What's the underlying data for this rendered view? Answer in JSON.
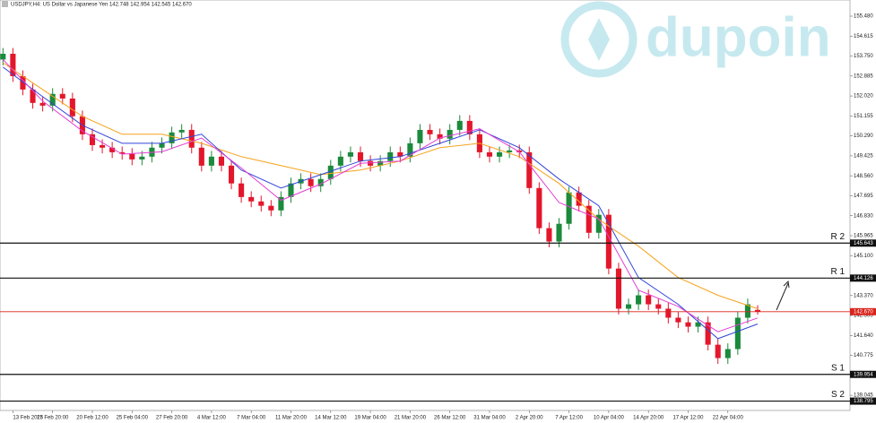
{
  "chart_data": {
    "type": "candlestick",
    "title": "USDJPY,H4:  US Dollar vs Japanese Yen  142.748 142.954 142.545 142.670",
    "watermark": "dupoin",
    "up_color": "#1b8a3c",
    "down_color": "#e3162b",
    "xlim": [
      -0.3,
      85.3
    ],
    "ylim": [
      138.39,
      156.18
    ],
    "xticks": [
      {
        "value": 1,
        "label": "13 Feb 2025"
      },
      {
        "value": 5,
        "label": "17 Feb 20:00"
      },
      {
        "value": 9,
        "label": "20 Feb 12:00"
      },
      {
        "value": 13,
        "label": "25 Feb 04:00"
      },
      {
        "value": 17,
        "label": "27 Feb 20:00"
      },
      {
        "value": 21,
        "label": "4 Mar 12:00"
      },
      {
        "value": 25,
        "label": "7 Mar 04:00"
      },
      {
        "value": 29,
        "label": "11 Mar 20:00"
      },
      {
        "value": 33,
        "label": "14 Mar 12:00"
      },
      {
        "value": 37,
        "label": "19 Mar 04:00"
      },
      {
        "value": 41,
        "label": "21 Mar 20:00"
      },
      {
        "value": 45,
        "label": "26 Mar 12:00"
      },
      {
        "value": 49,
        "label": "31 Mar 04:00"
      },
      {
        "value": 53,
        "label": "2 Apr 20:00"
      },
      {
        "value": 57,
        "label": "7 Apr 12:00"
      },
      {
        "value": 61,
        "label": "10 Apr 04:00"
      },
      {
        "value": 65,
        "label": "14 Apr 20:00"
      },
      {
        "value": 69,
        "label": "17 Apr 12:00"
      },
      {
        "value": 73,
        "label": "22 Apr 04:00"
      }
    ],
    "yticks": [
      {
        "value": 155.48,
        "label": "155.480"
      },
      154.615,
      {
        "value": 153.75,
        "label": "153.750"
      },
      152.885,
      {
        "value": 152.02,
        "label": "152.020"
      },
      151.155,
      {
        "value": 150.29,
        "label": "150.290"
      },
      149.425,
      {
        "value": 148.56,
        "label": "148.560"
      },
      147.695,
      {
        "value": 146.83,
        "label": "146.830"
      },
      145.965,
      {
        "value": 145.1,
        "label": "145.100"
      },
      {
        "value": 143.37,
        "label": "143.370"
      },
      142.505,
      {
        "value": 141.64,
        "label": "141.640"
      },
      140.775,
      139.045
    ],
    "open": [
      153.6,
      153.85,
      152.88,
      152.3,
      151.72,
      151.6,
      152.11,
      151.91,
      151.14,
      150.36,
      149.89,
      149.78,
      149.58,
      149.51,
      149.27,
      149.39,
      149.78,
      149.97,
      150.44,
      150.55,
      149.78,
      149.0,
      149.39,
      149.0,
      148.23,
      147.64,
      147.45,
      147.26,
      147.06,
      147.64,
      148.23,
      148.42,
      148.11,
      148.42,
      149.0,
      149.39,
      149.58,
      149.2,
      149.0,
      149.2,
      149.58,
      149.39,
      149.97,
      150.55,
      150.36,
      150.17,
      150.55,
      150.94,
      150.36,
      149.58,
      149.39,
      149.58,
      149.66,
      149.58,
      148.03,
      146.29,
      145.71,
      146.48,
      147.84,
      147.26,
      146.09,
      146.87,
      144.54,
      142.8,
      142.99,
      143.38,
      142.99,
      142.8,
      142.41,
      142.21,
      142.02,
      142.21,
      141.24,
      140.66,
      141.05,
      142.41,
      142.748
    ],
    "high": [
      154.1,
      154.1,
      153.13,
      152.55,
      151.97,
      152.36,
      152.36,
      152.16,
      151.39,
      150.61,
      150.14,
      150.03,
      149.83,
      149.76,
      149.64,
      150.03,
      150.22,
      150.69,
      150.8,
      150.8,
      150.03,
      149.64,
      149.64,
      149.25,
      148.48,
      147.89,
      147.7,
      147.51,
      147.89,
      148.48,
      148.67,
      148.67,
      148.67,
      149.25,
      149.64,
      149.83,
      149.83,
      149.45,
      149.45,
      149.83,
      149.83,
      150.22,
      150.8,
      150.8,
      150.61,
      150.8,
      151.19,
      151.19,
      150.61,
      149.83,
      149.83,
      149.91,
      149.91,
      149.83,
      148.28,
      146.54,
      146.73,
      148.09,
      148.09,
      147.51,
      147.12,
      147.12,
      144.79,
      143.24,
      143.63,
      143.63,
      143.24,
      143.05,
      142.66,
      142.46,
      142.46,
      142.46,
      141.49,
      141.3,
      142.66,
      143.24,
      142.954
    ],
    "low": [
      153.35,
      152.63,
      152.05,
      151.47,
      151.35,
      151.35,
      151.66,
      150.89,
      150.11,
      149.64,
      149.53,
      149.33,
      149.26,
      149.02,
      149.02,
      149.14,
      149.53,
      149.72,
      150.19,
      149.53,
      148.75,
      148.75,
      148.75,
      147.98,
      147.39,
      147.2,
      147.01,
      146.81,
      146.81,
      147.39,
      147.98,
      147.86,
      147.86,
      148.17,
      148.75,
      149.14,
      148.95,
      148.75,
      148.75,
      148.95,
      149.14,
      149.14,
      149.72,
      150.11,
      149.92,
      149.92,
      150.3,
      150.11,
      149.33,
      149.14,
      149.14,
      149.33,
      149.33,
      147.78,
      146.04,
      145.46,
      145.46,
      146.23,
      147.01,
      145.84,
      145.84,
      144.29,
      142.55,
      142.55,
      142.74,
      142.74,
      142.55,
      142.16,
      141.96,
      141.77,
      141.77,
      140.99,
      140.41,
      140.41,
      140.8,
      142.16,
      142.545
    ],
    "close": [
      153.85,
      152.88,
      152.3,
      151.72,
      151.6,
      152.11,
      151.91,
      151.14,
      150.36,
      149.89,
      149.78,
      149.58,
      149.51,
      149.27,
      149.39,
      149.78,
      149.97,
      150.44,
      150.55,
      149.78,
      149.0,
      149.39,
      149.0,
      148.23,
      147.64,
      147.45,
      147.26,
      147.06,
      147.64,
      148.23,
      148.42,
      148.11,
      148.42,
      149.0,
      149.39,
      149.58,
      149.2,
      149.0,
      149.2,
      149.58,
      149.39,
      149.97,
      150.55,
      150.36,
      150.17,
      150.55,
      150.94,
      150.36,
      149.58,
      149.39,
      149.58,
      149.66,
      149.58,
      148.03,
      146.29,
      145.71,
      146.48,
      147.84,
      147.26,
      146.09,
      146.87,
      144.54,
      142.8,
      142.99,
      143.38,
      142.99,
      142.8,
      142.41,
      142.21,
      142.02,
      142.21,
      141.24,
      140.66,
      141.05,
      142.41,
      142.99,
      142.67
    ],
    "series": [
      {
        "color": "#f5a31d",
        "x": [
          0,
          4,
          8,
          12,
          16,
          20,
          24,
          28,
          32,
          36,
          40,
          44,
          48,
          52,
          56,
          60,
          64,
          68,
          72,
          76
        ],
        "values": [
          153.46,
          152.3,
          151.14,
          150.36,
          150.36,
          149.97,
          149.39,
          149.0,
          148.61,
          148.81,
          149.2,
          149.78,
          149.97,
          149.39,
          148.23,
          146.67,
          145.51,
          144.15,
          143.38,
          142.8
        ]
      },
      {
        "color": "#3346d9",
        "x": [
          0,
          4,
          8,
          12,
          16,
          20,
          24,
          28,
          32,
          36,
          40,
          44,
          48,
          52,
          56,
          60,
          64,
          68,
          72,
          76
        ],
        "values": [
          153.27,
          151.99,
          150.75,
          149.97,
          149.97,
          150.36,
          148.81,
          148.03,
          148.61,
          149.2,
          149.39,
          149.97,
          150.55,
          149.78,
          148.42,
          147.26,
          144.15,
          142.99,
          141.5,
          142.14
        ]
      },
      {
        "color": "#e33fd4",
        "x": [
          0,
          4,
          8,
          12,
          16,
          20,
          24,
          28,
          32,
          36,
          40,
          44,
          48,
          52,
          56,
          60,
          64,
          68,
          72,
          76
        ],
        "values": [
          153.6,
          151.8,
          150.5,
          149.5,
          149.6,
          150.2,
          148.9,
          147.5,
          148.2,
          149.1,
          149.2,
          150.2,
          150.6,
          149.6,
          147.4,
          146.7,
          143.6,
          142.9,
          141.8,
          142.4
        ]
      }
    ],
    "current_price": {
      "value": 142.67,
      "label": "142.670",
      "color": "#d9241c"
    },
    "levels": [
      {
        "name": "R 2",
        "value": 145.643
      },
      {
        "name": "R 1",
        "value": 144.126
      },
      {
        "name": "S 1",
        "value": 139.954
      },
      {
        "name": "S 2",
        "value": 138.795
      }
    ]
  }
}
